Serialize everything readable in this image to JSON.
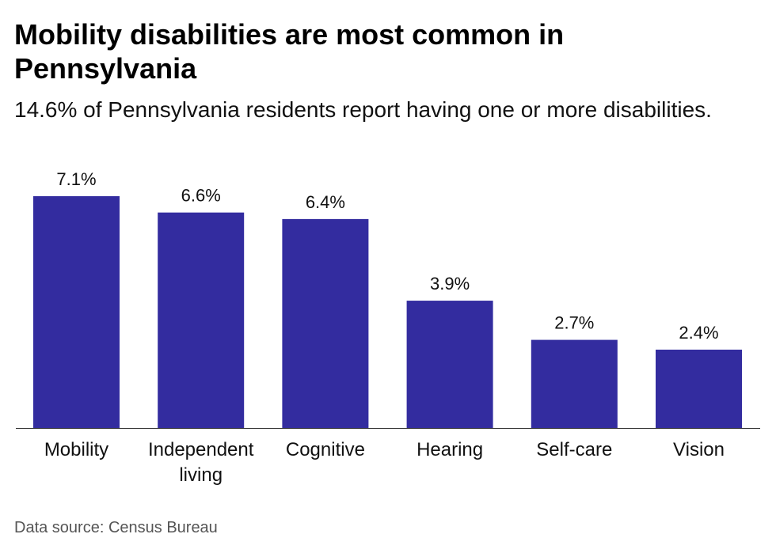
{
  "title": "Mobility disabilities are most common in Pennsylvania",
  "subtitle": "14.6% of Pennsylvania residents report having one or more disabilities.",
  "source": "Data source: Census Bureau",
  "colors": {
    "bar": "#332c9f",
    "axis": "#333333",
    "text": "#111111"
  },
  "chart_data": {
    "type": "bar",
    "title": "Mobility disabilities are most common in Pennsylvania",
    "subtitle": "14.6% of Pennsylvania residents report having one or more disabilities.",
    "xlabel": "",
    "ylabel": "",
    "grid": false,
    "legend": "none",
    "ylim": [
      0,
      7.1
    ],
    "categories": [
      "Mobility",
      "Independent living",
      "Cognitive",
      "Hearing",
      "Self-care",
      "Vision"
    ],
    "category_lines": [
      [
        "Mobility"
      ],
      [
        "Independent",
        "living"
      ],
      [
        "Cognitive"
      ],
      [
        "Hearing"
      ],
      [
        "Self-care"
      ],
      [
        "Vision"
      ]
    ],
    "values": [
      7.1,
      6.6,
      6.4,
      3.9,
      2.7,
      2.4
    ],
    "value_labels": [
      "7.1%",
      "6.6%",
      "6.4%",
      "3.9%",
      "2.7%",
      "2.4%"
    ]
  }
}
